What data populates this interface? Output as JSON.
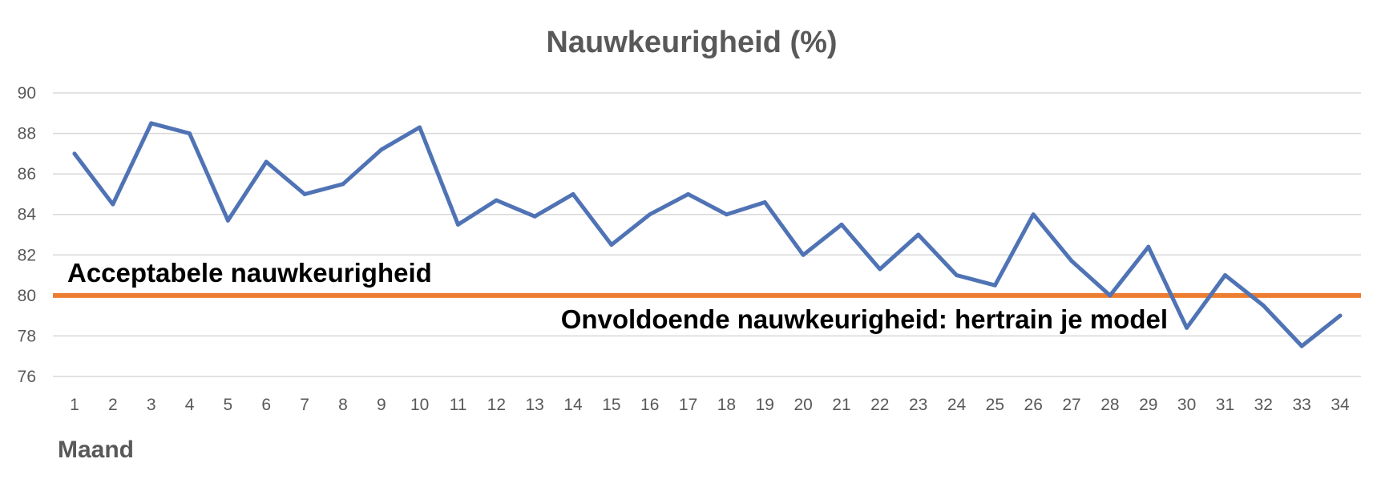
{
  "chart_data": {
    "type": "line",
    "title": "Nauwkeurigheid (%)",
    "xlabel": "Maand",
    "ylabel": "",
    "ylim": [
      76,
      90
    ],
    "yticks": [
      76,
      78,
      80,
      82,
      84,
      86,
      88,
      90
    ],
    "grid": true,
    "categories": [
      "1",
      "2",
      "3",
      "4",
      "5",
      "6",
      "7",
      "8",
      "9",
      "10",
      "11",
      "12",
      "13",
      "14",
      "15",
      "16",
      "17",
      "18",
      "19",
      "20",
      "21",
      "22",
      "23",
      "24",
      "25",
      "26",
      "27",
      "28",
      "29",
      "30",
      "31",
      "32",
      "33",
      "34"
    ],
    "series": [
      {
        "color": "#4f73b5",
        "values": [
          87.0,
          84.5,
          88.5,
          88.0,
          83.7,
          86.6,
          85.0,
          85.5,
          87.2,
          88.3,
          83.5,
          84.7,
          83.9,
          85.0,
          82.5,
          84.0,
          85.0,
          84.0,
          84.6,
          82.0,
          83.5,
          81.3,
          83.0,
          81.0,
          80.5,
          84.0,
          81.7,
          80.0,
          82.4,
          78.4,
          81.0,
          79.5,
          77.5,
          79.0
        ]
      }
    ],
    "threshold": {
      "value": 80,
      "color": "#ed7d31"
    },
    "annotations": {
      "above": "Acceptabele nauwkeurigheid",
      "below": "Onvoldoende nauwkeurigheid: hertrain je model"
    }
  }
}
